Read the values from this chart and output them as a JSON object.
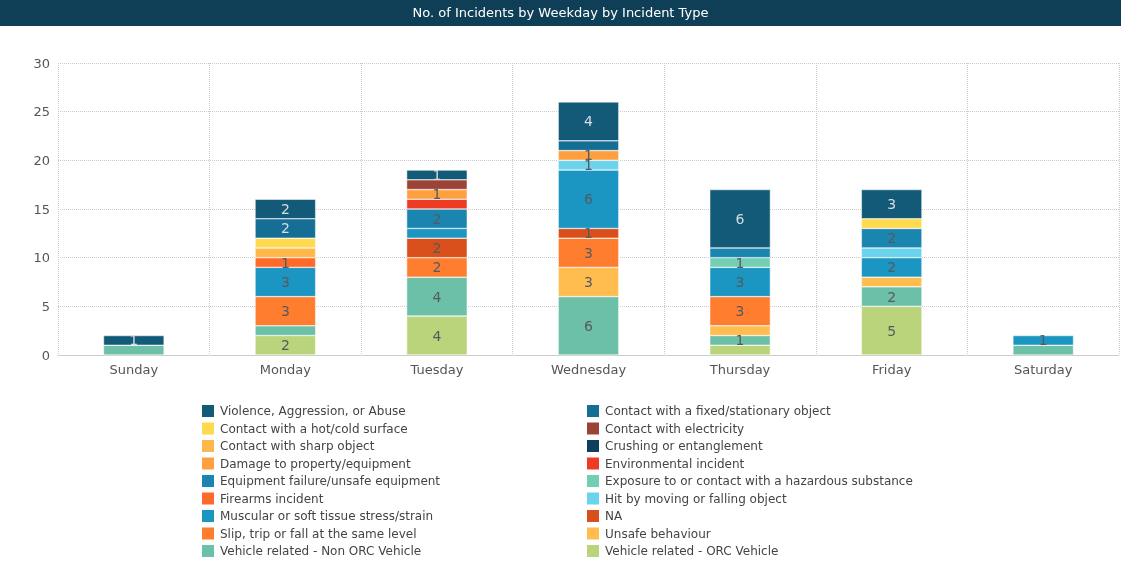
{
  "chart_data": {
    "type": "bar",
    "title": "No. of Incidents by Weekday by Incident Type",
    "stacked": true,
    "grid": true,
    "legend": "bottom",
    "ylim": [
      0,
      30
    ],
    "yticks": [
      0,
      5,
      10,
      15,
      20,
      25,
      30
    ],
    "categories": [
      "Sunday",
      "Monday",
      "Tuesday",
      "Wednesday",
      "Thursday",
      "Friday",
      "Saturday"
    ],
    "series": [
      {
        "name": "Vehicle related - ORC Vehicle",
        "color": "#b9d47b",
        "values": [
          null,
          2,
          4,
          null,
          1,
          5,
          null
        ],
        "value_labels": [
          null,
          "2",
          "4",
          null,
          null,
          "5",
          null
        ]
      },
      {
        "name": "Vehicle related - Non ORC Vehicle",
        "color": "#6cc0a8",
        "values": [
          1,
          1,
          4,
          6,
          1,
          2,
          1
        ],
        "value_labels": [
          null,
          null,
          "4",
          "6",
          "1",
          "2",
          null
        ]
      },
      {
        "name": "Unsafe behaviour",
        "color": "#ffbd4f",
        "values": [
          null,
          null,
          null,
          3,
          1,
          1,
          null
        ],
        "value_labels": [
          null,
          null,
          null,
          "3",
          null,
          null,
          null
        ]
      },
      {
        "name": "Slip, trip or fall at the same level",
        "color": "#ff7d2e",
        "values": [
          null,
          3,
          2,
          3,
          3,
          null,
          null
        ],
        "value_labels": [
          null,
          "3",
          "2",
          "3",
          "3",
          null,
          null
        ]
      },
      {
        "name": "NA",
        "color": "#d84f1c",
        "values": [
          null,
          null,
          2,
          1,
          null,
          null,
          null
        ],
        "value_labels": [
          null,
          null,
          "2",
          "1",
          null,
          null,
          null
        ]
      },
      {
        "name": "Muscular or soft tissue stress/strain",
        "color": "#1b95c1",
        "values": [
          null,
          3,
          1,
          6,
          3,
          2,
          1
        ],
        "value_labels": [
          null,
          "3",
          null,
          "6",
          "3",
          "2",
          "1"
        ]
      },
      {
        "name": "Hit by moving or falling object",
        "color": "#6bd3eb",
        "values": [
          null,
          null,
          null,
          1,
          null,
          1,
          null
        ],
        "value_labels": [
          null,
          null,
          null,
          "1",
          null,
          null,
          null
        ]
      },
      {
        "name": "Firearms incident",
        "color": "#ff6a2a",
        "values": [
          null,
          1,
          null,
          null,
          null,
          null,
          null
        ],
        "value_labels": [
          null,
          "1",
          null,
          null,
          null,
          null,
          null
        ]
      },
      {
        "name": "Exposure to or contact with a hazardous substance",
        "color": "#73cfb4",
        "values": [
          null,
          null,
          null,
          null,
          1,
          null,
          null
        ],
        "value_labels": [
          null,
          null,
          null,
          null,
          "1",
          null,
          null
        ]
      },
      {
        "name": "Equipment failure/unsafe equipment",
        "color": "#1a86b0",
        "values": [
          null,
          null,
          2,
          null,
          1,
          2,
          null
        ],
        "value_labels": [
          null,
          null,
          "2",
          null,
          null,
          "2",
          null
        ]
      },
      {
        "name": "Environmental incident",
        "color": "#ee3b24",
        "values": [
          null,
          null,
          1,
          null,
          null,
          null,
          null
        ],
        "value_labels": [
          null,
          null,
          null,
          null,
          null,
          null,
          null
        ]
      },
      {
        "name": "Damage to property/equipment",
        "color": "#ffa040",
        "values": [
          null,
          null,
          1,
          1,
          null,
          null,
          null
        ],
        "value_labels": [
          null,
          null,
          "1",
          "1",
          null,
          null,
          null
        ]
      },
      {
        "name": "Crushing or entanglement",
        "color": "#0f3e5e",
        "values": [
          null,
          null,
          null,
          null,
          null,
          null,
          null
        ],
        "value_labels": [
          null,
          null,
          null,
          null,
          null,
          null,
          null
        ]
      },
      {
        "name": "Contact with sharp object",
        "color": "#ffb74a",
        "values": [
          null,
          1,
          null,
          null,
          null,
          null,
          null
        ],
        "value_labels": [
          null,
          null,
          null,
          null,
          null,
          null,
          null
        ]
      },
      {
        "name": "Contact with electricity",
        "color": "#9c4237",
        "values": [
          null,
          null,
          1,
          null,
          null,
          null,
          null
        ],
        "value_labels": [
          null,
          null,
          null,
          null,
          null,
          null,
          null
        ]
      },
      {
        "name": "Contact with a hot/cold surface",
        "color": "#ffd94e",
        "values": [
          null,
          1,
          null,
          null,
          null,
          1,
          null
        ],
        "value_labels": [
          null,
          null,
          null,
          null,
          null,
          null,
          null
        ]
      },
      {
        "name": "Contact with a fixed/stationary object",
        "color": "#156f94",
        "values": [
          null,
          2,
          null,
          1,
          null,
          null,
          null
        ],
        "value_labels": [
          null,
          "2",
          null,
          null,
          null,
          null,
          null
        ]
      },
      {
        "name": "Violence, Aggression, or Abuse",
        "color": "#135a78",
        "values": [
          1,
          2,
          1,
          4,
          6,
          3,
          null
        ],
        "value_labels": [
          "1",
          "2",
          "1",
          "4",
          "6",
          "3",
          null
        ]
      }
    ]
  }
}
